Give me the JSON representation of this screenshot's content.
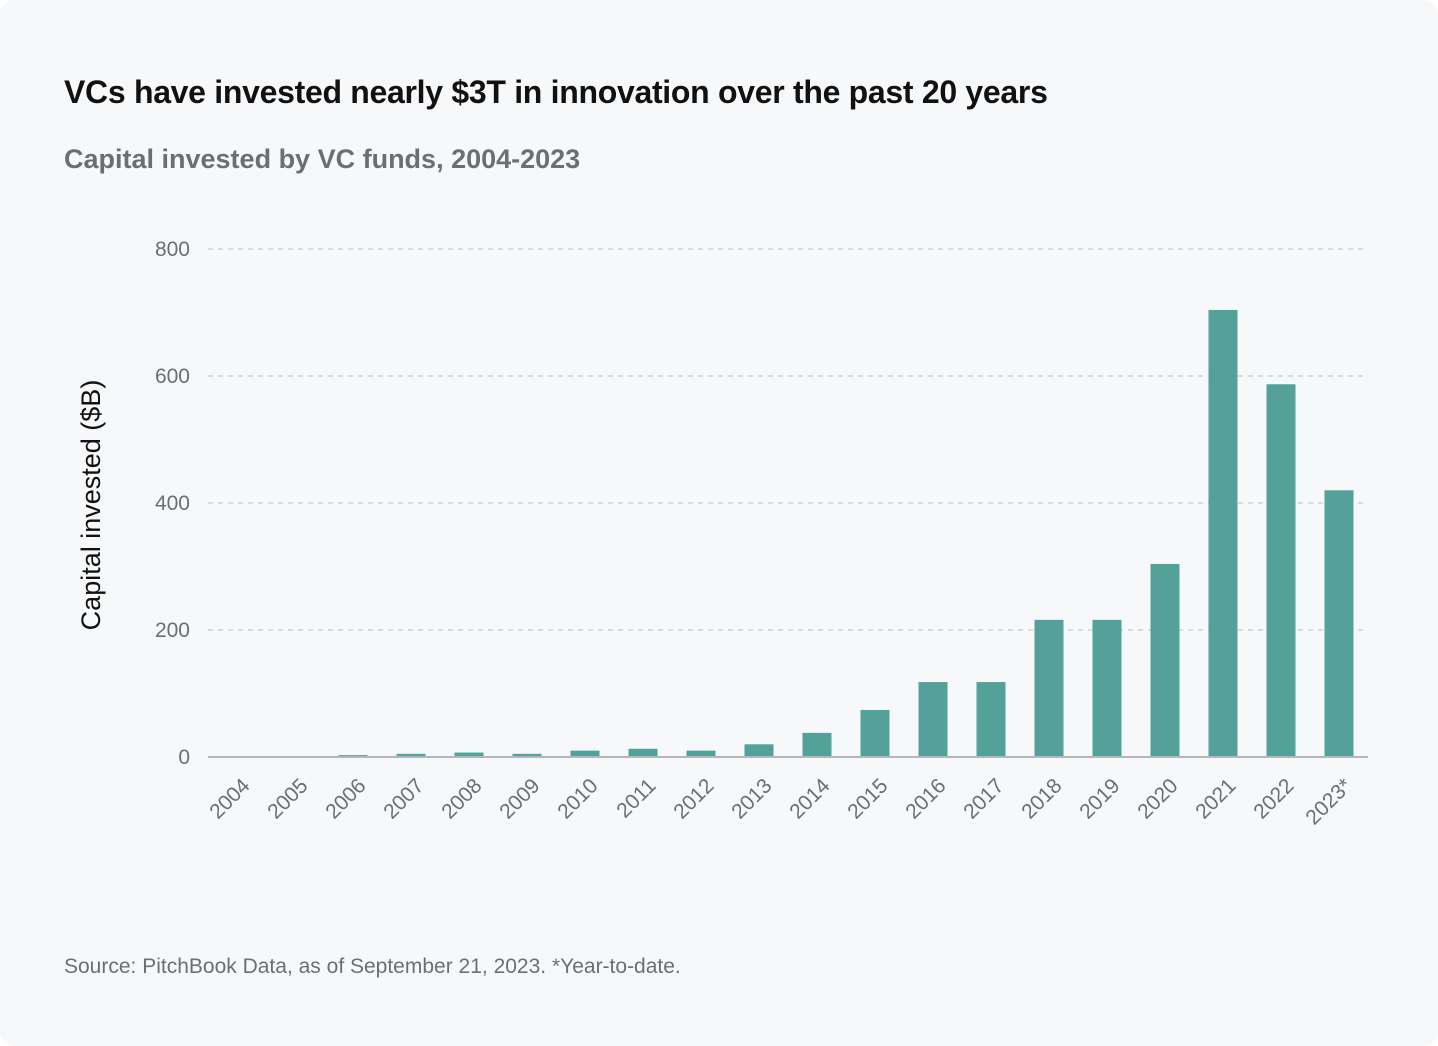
{
  "title": "VCs have invested nearly $3T in innovation over the past 20 years",
  "subtitle": "Capital invested by VC funds, 2004-2023",
  "source": "Source: PitchBook Data, as of September 21, 2023. *Year-to-date.",
  "chart_data": {
    "type": "bar",
    "title": "VCs have invested nearly $3T in innovation over the past 20 years",
    "subtitle": "Capital invested by VC funds, 2004-2023",
    "xlabel": "",
    "ylabel": "Capital invested ($B)",
    "ylim": [
      0,
      800
    ],
    "yticks": [
      "0",
      "200",
      "400",
      "600",
      "800"
    ],
    "grid": "horizontal dashed",
    "bar_color": "#54a19a",
    "categories": [
      "2004",
      "2005",
      "2006",
      "2007",
      "2008",
      "2009",
      "2010",
      "2011",
      "2012",
      "2013",
      "2014",
      "2015",
      "2016",
      "2017",
      "2018",
      "2019",
      "2020",
      "2021",
      "2022",
      "2023*"
    ],
    "values": [
      0.5,
      0.5,
      3,
      5,
      7,
      5,
      10,
      13,
      10,
      20,
      38,
      74,
      118,
      118,
      216,
      216,
      304,
      704,
      587,
      420
    ]
  }
}
